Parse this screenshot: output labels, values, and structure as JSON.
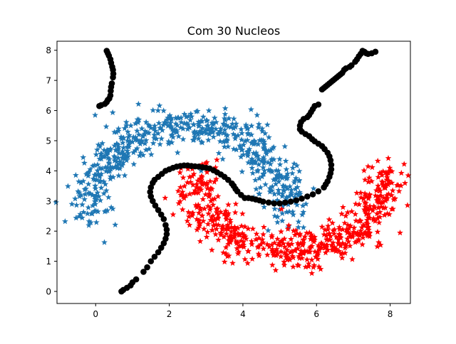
{
  "chart_data": {
    "type": "scatter",
    "title": "Com 30 Nucleos",
    "xlabel": "",
    "ylabel": "",
    "xlim": [
      -1.05,
      8.55
    ],
    "ylim": [
      -0.4,
      8.3
    ],
    "xticks": [
      0,
      2,
      4,
      6,
      8
    ],
    "yticks": [
      0,
      1,
      2,
      3,
      4,
      5,
      6,
      7,
      8
    ],
    "grid": false,
    "legend": "none",
    "colors": {
      "upper_moon": "#1f77b4",
      "lower_moon": "#ff0000",
      "centers": "#000000"
    },
    "series": [
      {
        "role": "upper_moon",
        "marker": "star",
        "color": "#1f77b4",
        "generator": {
          "shape": "arc",
          "cx": 2.5,
          "cy": 2.5,
          "rx": 2.7,
          "ry": 3.0,
          "angle_start_deg": 180,
          "angle_end_deg": 0,
          "count": 600,
          "spread": 0.32
        }
      },
      {
        "role": "lower_moon",
        "marker": "star",
        "color": "#ff0000",
        "generator": {
          "shape": "arc",
          "cx": 5.3,
          "cy": 3.9,
          "rx": 2.6,
          "ry": 2.5,
          "angle_start_deg": 180,
          "angle_end_deg": 360,
          "count": 600,
          "spread": 0.32
        }
      },
      {
        "role": "centers",
        "marker": "circle",
        "color": "#000000",
        "points": [
          [
            0.3,
            7.98
          ],
          [
            0.33,
            7.9
          ],
          [
            0.36,
            7.82
          ],
          [
            0.4,
            7.7
          ],
          [
            0.42,
            7.58
          ],
          [
            0.45,
            7.45
          ],
          [
            0.47,
            7.35
          ],
          [
            0.48,
            7.22
          ],
          [
            0.47,
            7.1
          ],
          [
            0.44,
            6.9
          ],
          [
            0.42,
            6.78
          ],
          [
            0.41,
            6.65
          ],
          [
            0.4,
            6.5
          ],
          [
            0.37,
            6.4
          ],
          [
            0.33,
            6.35
          ],
          [
            0.3,
            6.28
          ],
          [
            0.25,
            6.22
          ],
          [
            0.15,
            6.18
          ],
          [
            0.1,
            6.15
          ],
          [
            7.25,
            7.98
          ],
          [
            7.3,
            7.95
          ],
          [
            7.2,
            7.88
          ],
          [
            7.35,
            7.9
          ],
          [
            7.15,
            7.8
          ],
          [
            7.4,
            7.88
          ],
          [
            7.5,
            7.9
          ],
          [
            7.6,
            7.95
          ],
          [
            7.1,
            7.7
          ],
          [
            7.05,
            7.62
          ],
          [
            6.95,
            7.5
          ],
          [
            6.9,
            7.45
          ],
          [
            6.8,
            7.4
          ],
          [
            6.75,
            7.35
          ],
          [
            6.7,
            7.25
          ],
          [
            6.65,
            7.2
          ],
          [
            6.6,
            7.15
          ],
          [
            6.55,
            7.1
          ],
          [
            6.5,
            7.05
          ],
          [
            6.45,
            7.0
          ],
          [
            6.4,
            6.95
          ],
          [
            6.35,
            6.9
          ],
          [
            6.3,
            6.85
          ],
          [
            6.25,
            6.8
          ],
          [
            6.2,
            6.75
          ],
          [
            6.15,
            6.7
          ],
          [
            6.05,
            6.2
          ],
          [
            5.95,
            6.15
          ],
          [
            5.9,
            6.05
          ],
          [
            5.85,
            5.95
          ],
          [
            5.8,
            5.85
          ],
          [
            5.75,
            5.78
          ],
          [
            5.65,
            5.72
          ],
          [
            5.58,
            5.62
          ],
          [
            5.55,
            5.5
          ],
          [
            5.55,
            5.38
          ],
          [
            5.6,
            5.3
          ],
          [
            5.7,
            5.22
          ],
          [
            5.8,
            5.15
          ],
          [
            5.88,
            5.05
          ],
          [
            5.95,
            4.98
          ],
          [
            6.05,
            4.9
          ],
          [
            6.15,
            4.82
          ],
          [
            6.22,
            4.72
          ],
          [
            6.3,
            4.6
          ],
          [
            6.35,
            4.48
          ],
          [
            6.38,
            4.35
          ],
          [
            6.4,
            4.2
          ],
          [
            6.4,
            4.05
          ],
          [
            6.38,
            3.92
          ],
          [
            6.35,
            3.8
          ],
          [
            6.3,
            3.65
          ],
          [
            6.25,
            3.55
          ],
          [
            6.2,
            3.45
          ],
          [
            6.05,
            3.32
          ],
          [
            5.9,
            3.22
          ],
          [
            5.75,
            3.15
          ],
          [
            5.6,
            3.08
          ],
          [
            5.45,
            3.02
          ],
          [
            5.3,
            2.98
          ],
          [
            5.15,
            2.95
          ],
          [
            5.0,
            2.92
          ],
          [
            4.85,
            2.92
          ],
          [
            4.7,
            2.95
          ],
          [
            4.55,
            2.98
          ],
          [
            4.45,
            3.02
          ],
          [
            4.35,
            3.05
          ],
          [
            4.25,
            3.08
          ],
          [
            4.15,
            3.1
          ],
          [
            4.05,
            3.1
          ],
          [
            3.95,
            3.2
          ],
          [
            3.85,
            3.32
          ],
          [
            3.8,
            3.4
          ],
          [
            3.75,
            3.5
          ],
          [
            3.7,
            3.58
          ],
          [
            3.6,
            3.7
          ],
          [
            3.5,
            3.8
          ],
          [
            3.4,
            3.88
          ],
          [
            3.3,
            3.95
          ],
          [
            3.2,
            4.02
          ],
          [
            3.1,
            4.08
          ],
          [
            3.0,
            4.1
          ],
          [
            2.9,
            4.12
          ],
          [
            2.8,
            4.14
          ],
          [
            2.7,
            4.15
          ],
          [
            2.6,
            4.16
          ],
          [
            2.5,
            4.18
          ],
          [
            2.4,
            4.18
          ],
          [
            2.3,
            4.16
          ],
          [
            2.2,
            4.14
          ],
          [
            2.1,
            4.1
          ],
          [
            2.0,
            4.05
          ],
          [
            1.9,
            4.0
          ],
          [
            1.8,
            3.9
          ],
          [
            1.7,
            3.8
          ],
          [
            1.6,
            3.7
          ],
          [
            1.55,
            3.6
          ],
          [
            1.5,
            3.45
          ],
          [
            1.48,
            3.3
          ],
          [
            1.5,
            3.15
          ],
          [
            1.55,
            3.0
          ],
          [
            1.62,
            2.85
          ],
          [
            1.7,
            2.7
          ],
          [
            1.78,
            2.55
          ],
          [
            1.85,
            2.4
          ],
          [
            1.9,
            2.2
          ],
          [
            1.93,
            2.05
          ],
          [
            1.93,
            1.9
          ],
          [
            1.9,
            1.75
          ],
          [
            1.85,
            1.6
          ],
          [
            1.78,
            1.45
          ],
          [
            1.7,
            1.3
          ],
          [
            1.6,
            1.15
          ],
          [
            1.5,
            1.0
          ],
          [
            1.4,
            0.8
          ],
          [
            1.3,
            0.65
          ],
          [
            1.1,
            0.4
          ],
          [
            1.0,
            0.3
          ],
          [
            0.95,
            0.2
          ],
          [
            0.85,
            0.12
          ],
          [
            0.75,
            0.05
          ],
          [
            0.7,
            0.0
          ]
        ]
      }
    ]
  }
}
